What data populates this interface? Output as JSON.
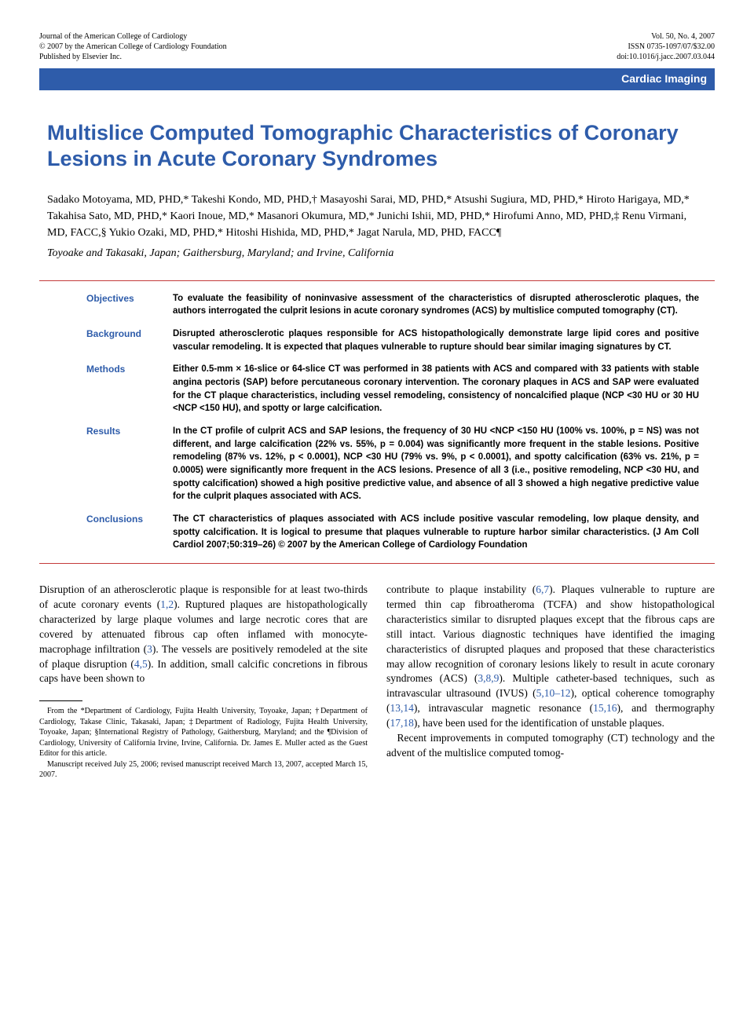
{
  "header": {
    "journal_line1": "Journal of the American College of Cardiology",
    "journal_line2": "© 2007 by the American College of Cardiology Foundation",
    "journal_line3": "Published by Elsevier Inc.",
    "vol_line": "Vol. 50, No. 4, 2007",
    "issn_line": "ISSN 0735-1097/07/$32.00",
    "doi_line": "doi:10.1016/j.jacc.2007.03.044"
  },
  "category": "Cardiac Imaging",
  "title": "Multislice Computed Tomographic Characteristics of Coronary Lesions in Acute Coronary Syndromes",
  "authors": "Sadako Motoyama, MD, PHD,* Takeshi Kondo, MD, PHD,† Masayoshi Sarai, MD, PHD,* Atsushi Sugiura, MD, PHD,* Hiroto Harigaya, MD,* Takahisa Sato, MD, PHD,* Kaori Inoue, MD,* Masanori Okumura, MD,* Junichi Ishii, MD, PHD,* Hirofumi Anno, MD, PHD,‡ Renu Virmani, MD, FACC,§ Yukio Ozaki, MD, PHD,* Hitoshi Hishida, MD, PHD,* Jagat Narula, MD, PHD, FACC¶",
  "affiliations": "Toyoake and Takasaki, Japan; Gaithersburg, Maryland; and Irvine, California",
  "abstract": {
    "objectives": {
      "label": "Objectives",
      "text": "To evaluate the feasibility of noninvasive assessment of the characteristics of disrupted atherosclerotic plaques, the authors interrogated the culprit lesions in acute coronary syndromes (ACS) by multislice computed tomography (CT)."
    },
    "background": {
      "label": "Background",
      "text": "Disrupted atherosclerotic plaques responsible for ACS histopathologically demonstrate large lipid cores and positive vascular remodeling. It is expected that plaques vulnerable to rupture should bear similar imaging signatures by CT."
    },
    "methods": {
      "label": "Methods",
      "text": "Either 0.5-mm × 16-slice or 64-slice CT was performed in 38 patients with ACS and compared with 33 patients with stable angina pectoris (SAP) before percutaneous coronary intervention. The coronary plaques in ACS and SAP were evaluated for the CT plaque characteristics, including vessel remodeling, consistency of noncalcified plaque (NCP <30 HU or 30 HU <NCP <150 HU), and spotty or large calcification."
    },
    "results": {
      "label": "Results",
      "text": "In the CT profile of culprit ACS and SAP lesions, the frequency of 30 HU <NCP <150 HU (100% vs. 100%, p = NS) was not different, and large calcification (22% vs. 55%, p = 0.004) was significantly more frequent in the stable lesions. Positive remodeling (87% vs. 12%, p < 0.0001), NCP <30 HU (79% vs. 9%, p < 0.0001), and spotty calcification (63% vs. 21%, p = 0.0005) were significantly more frequent in the ACS lesions. Presence of all 3 (i.e., positive remodeling, NCP <30 HU, and spotty calcification) showed a high positive predictive value, and absence of all 3 showed a high negative predictive value for the culprit plaques associated with ACS."
    },
    "conclusions": {
      "label": "Conclusions",
      "text": "The CT characteristics of plaques associated with ACS include positive vascular remodeling, low plaque density, and spotty calcification. It is logical to presume that plaques vulnerable to rupture harbor similar characteristics.   (J Am Coll Cardiol 2007;50:319–26) © 2007 by the American College of Cardiology Foundation"
    }
  },
  "body": {
    "col1_p1_a": "Disruption of an atherosclerotic plaque is responsible for at least two-thirds of acute coronary events (",
    "ref12": "1,2",
    "col1_p1_b": "). Ruptured plaques are histopathologically characterized by large plaque volumes and large necrotic cores that are covered by attenuated fibrous cap often inflamed with monocyte-macrophage infiltration (",
    "ref3": "3",
    "col1_p1_c": "). The vessels are positively remodeled at the site of plaque disruption (",
    "ref45": "4,5",
    "col1_p1_d": "). In addition, small calcific concretions in fibrous caps have been shown to",
    "col2_p1_a": "contribute to plaque instability (",
    "ref67": "6,7",
    "col2_p1_b": "). Plaques vulnerable to rupture are termed thin cap fibroatheroma (TCFA) and show histopathological characteristics similar to disrupted plaques except that the fibrous caps are still intact. Various diagnostic techniques have identified the imaging characteristics of disrupted plaques and proposed that these characteristics may allow recognition of coronary lesions likely to result in acute coronary syndromes (ACS) (",
    "ref389": "3,8,9",
    "col2_p1_c": "). Multiple catheter-based techniques, such as intravascular ultrasound (IVUS) (",
    "ref51012": "5,10–12",
    "col2_p1_d": "), optical coherence tomography (",
    "ref1314": "13,14",
    "col2_p1_e": "), intravascular magnetic resonance (",
    "ref1516": "15,16",
    "col2_p1_f": "), and thermography (",
    "ref1718": "17,18",
    "col2_p1_g": "), have been used for the identification of unstable plaques.",
    "col2_p2": "Recent improvements in computed tomography (CT) technology and the advent of the multislice computed tomog-"
  },
  "footnote": {
    "p1": "From the *Department of Cardiology, Fujita Health University, Toyoake, Japan; †Department of Cardiology, Takase Clinic, Takasaki, Japan; ‡Department of Radiology, Fujita Health University, Toyoake, Japan; §International Registry of Pathology, Gaithersburg, Maryland; and the ¶Division of Cardiology, University of California Irvine, Irvine, California. Dr. James E. Muller acted as the Guest Editor for this article.",
    "p2": "Manuscript received July 25, 2006; revised manuscript received March 13, 2007, accepted March 15, 2007."
  },
  "colors": {
    "brand_blue": "#2e5caa",
    "rule_red": "#c43a3a",
    "text": "#000000",
    "background": "#ffffff"
  }
}
